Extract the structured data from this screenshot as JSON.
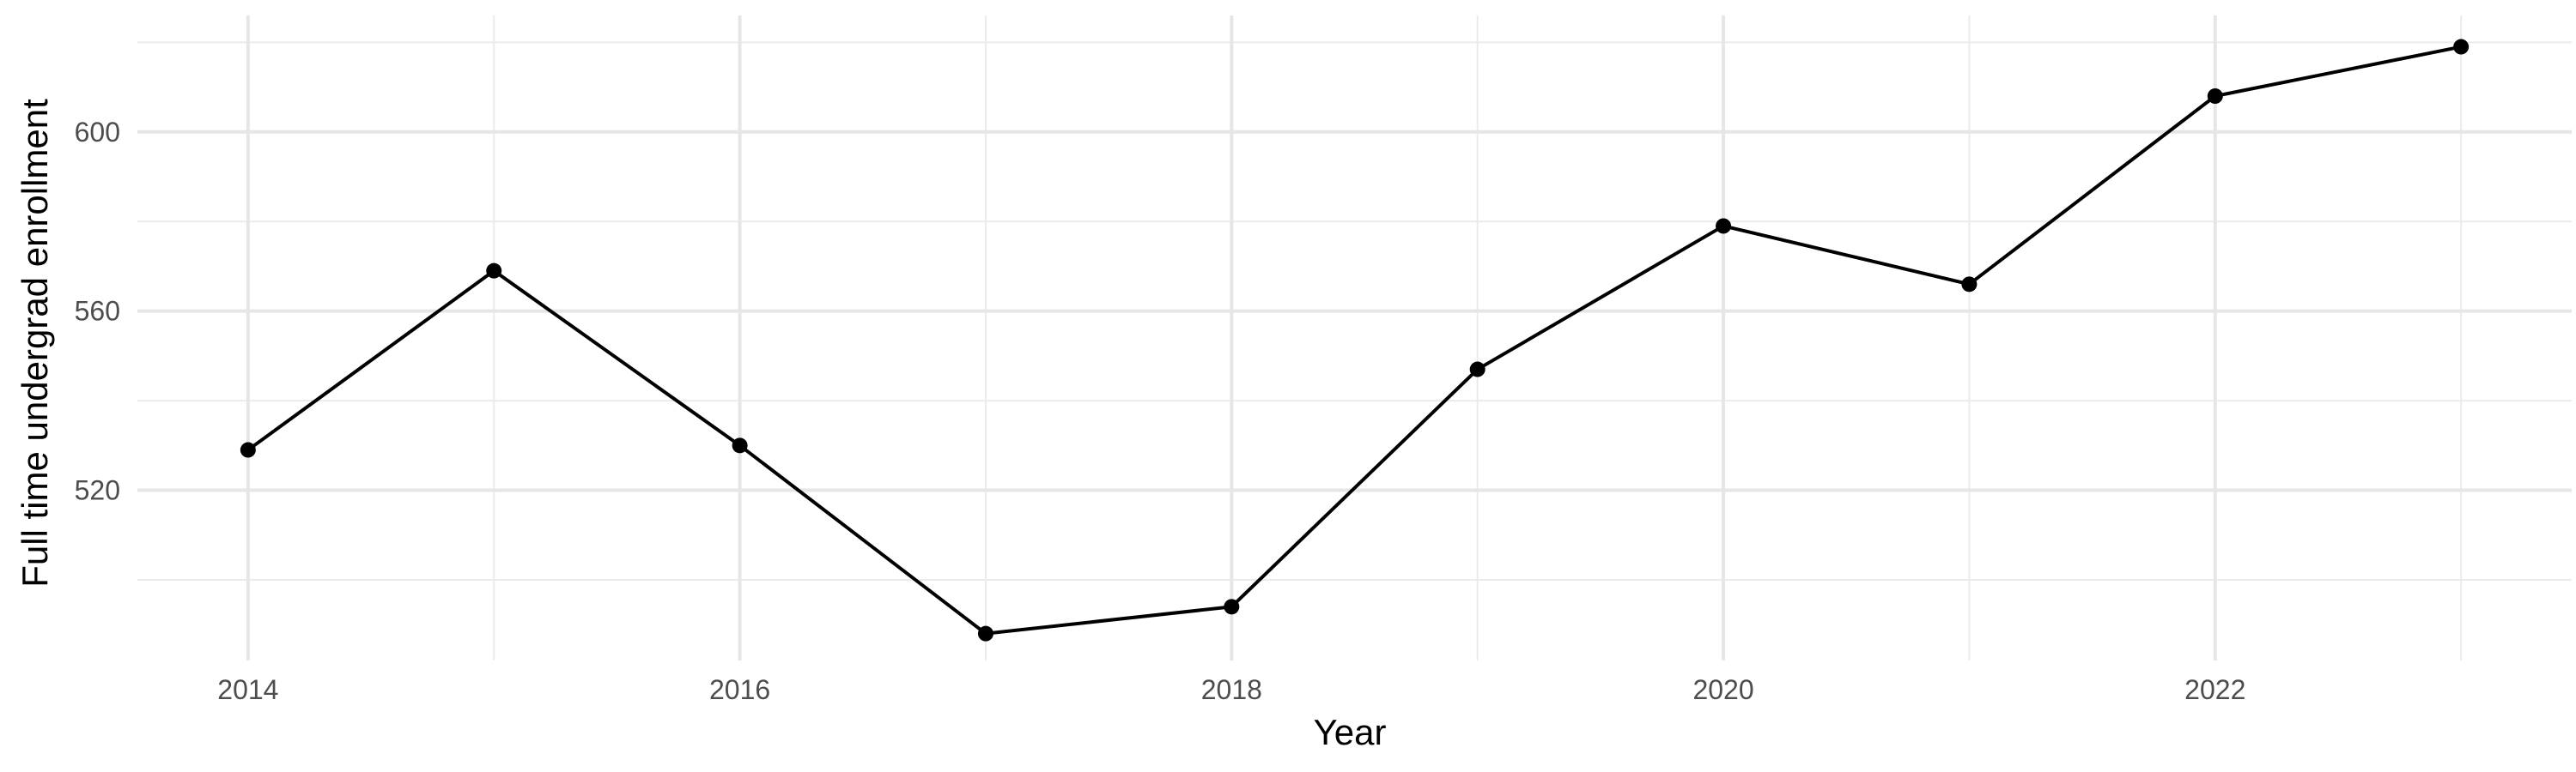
{
  "chart_data": {
    "type": "line",
    "title": "",
    "xlabel": "Year",
    "ylabel": "Full time undergrad enrollment",
    "x": [
      2014,
      2015,
      2016,
      2017,
      2018,
      2019,
      2020,
      2021,
      2022,
      2023
    ],
    "series": [
      {
        "values": [
          529,
          569,
          530,
          488,
          494,
          547,
          579,
          566,
          608,
          619
        ],
        "color": "#000000"
      }
    ],
    "xlim": [
      2013.55,
      2023.45
    ],
    "ylim": [
      482,
      626
    ],
    "x_ticks": [
      2014,
      2016,
      2018,
      2020,
      2022
    ],
    "x_tick_labels": [
      "2014",
      "2016",
      "2018",
      "2020",
      "2022"
    ],
    "y_ticks": [
      520,
      560,
      600
    ],
    "y_tick_labels": [
      "520",
      "560",
      "600"
    ],
    "x_minor_ticks": [
      2015,
      2017,
      2019,
      2021,
      2023
    ],
    "y_minor_ticks": [
      500,
      540,
      580,
      620
    ],
    "grid": true,
    "legend": "none",
    "theme": "minimal"
  }
}
